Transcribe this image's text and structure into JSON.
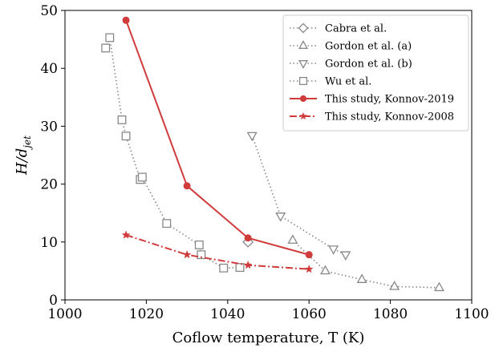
{
  "chart_data": {
    "type": "line",
    "xlabel": "Coflow temperature, T (K)",
    "ylabel_main": "H/d",
    "ylabel_sub": "jet",
    "xlim": [
      1000,
      1100
    ],
    "ylim": [
      0,
      50
    ],
    "xticks": [
      1000,
      1020,
      1040,
      1060,
      1080,
      1100
    ],
    "yticks": [
      0,
      10,
      20,
      30,
      40,
      50
    ],
    "legend_position": "top-right",
    "series": [
      {
        "name": "Cabra et al.",
        "color": "#888888",
        "line": "dotted",
        "marker": "diamond-open",
        "points": [
          [
            1045,
            10
          ]
        ]
      },
      {
        "name": "Gordon et al. (a)",
        "color": "#888888",
        "line": "dotted",
        "marker": "triangle-up-open",
        "points": [
          [
            1056,
            10.3
          ],
          [
            1064,
            5
          ],
          [
            1073,
            3.5
          ],
          [
            1081,
            2.3
          ],
          [
            1092,
            2.1
          ]
        ]
      },
      {
        "name": "Gordon et al. (b)",
        "color": "#888888",
        "line": "dotted",
        "marker": "triangle-down-open",
        "points": [
          [
            1046,
            28.4
          ],
          [
            1053,
            14.5
          ],
          [
            1066,
            8.8
          ],
          [
            1069,
            7.8
          ]
        ]
      },
      {
        "name": "Wu et al.",
        "color": "#888888",
        "line": "dotted",
        "marker": "square-open",
        "points": [
          [
            1010,
            43.5
          ],
          [
            1011,
            45.3
          ],
          [
            1014,
            31.1
          ],
          [
            1015,
            28.3
          ],
          [
            1018.5,
            20.8
          ],
          [
            1019,
            21.2
          ],
          [
            1025,
            13.2
          ],
          [
            1033,
            9.5
          ],
          [
            1033.5,
            7.8
          ],
          [
            1039,
            5.5
          ],
          [
            1043,
            5.6
          ]
        ]
      },
      {
        "name": "This study, Konnov-2019",
        "color": "#d03b3b",
        "line": "solid",
        "marker": "circle-filled",
        "points": [
          [
            1015,
            48.3
          ],
          [
            1030,
            19.7
          ],
          [
            1045,
            10.7
          ],
          [
            1060,
            7.8
          ]
        ]
      },
      {
        "name": "This study, Konnov-2008",
        "color": "#d03b3b",
        "line": "dashdot",
        "marker": "star-filled",
        "points": [
          [
            1015,
            11.2
          ],
          [
            1030,
            7.8
          ],
          [
            1045,
            6
          ],
          [
            1060,
            5.3
          ]
        ]
      }
    ]
  }
}
